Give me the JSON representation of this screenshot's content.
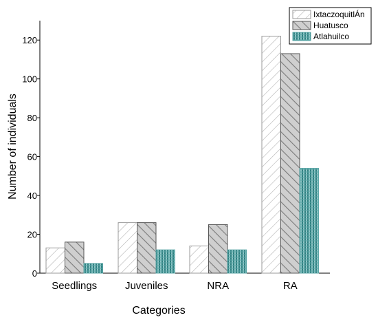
{
  "chart_data": {
    "type": "bar",
    "title": "",
    "xlabel": "Categories",
    "ylabel": "Number of individuals",
    "categories": [
      "Seedlings",
      "Juveniles",
      "NRA",
      "RA"
    ],
    "ylim": [
      0,
      130
    ],
    "yticks": [
      0,
      20,
      40,
      60,
      80,
      100,
      120
    ],
    "legend_position": "top-right",
    "grid": false,
    "series": [
      {
        "name": "IxtaczoquitlÁn",
        "values": [
          13,
          26,
          14,
          122
        ],
        "pattern": "diagonal-light",
        "color": "#c8c8c8"
      },
      {
        "name": "Huatusco",
        "values": [
          16,
          26,
          25,
          113
        ],
        "pattern": "diagonal-dark",
        "color": "#8c8c8c"
      },
      {
        "name": "Atlahuilco",
        "values": [
          5,
          12,
          12,
          54
        ],
        "pattern": "vertical-teal",
        "color": "#5aa6a6"
      }
    ]
  }
}
